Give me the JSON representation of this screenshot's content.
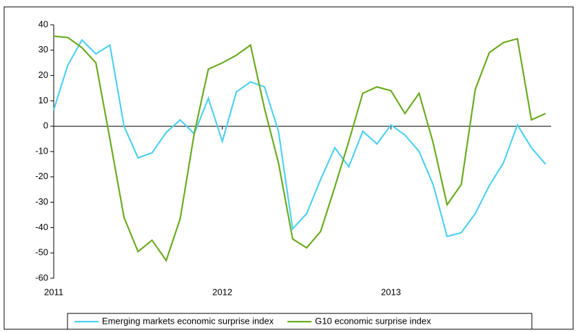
{
  "chart_data": {
    "type": "line",
    "x": [
      2011,
      2011.083,
      2011.167,
      2011.25,
      2011.333,
      2011.417,
      2011.5,
      2011.583,
      2011.667,
      2011.75,
      2011.833,
      2011.917,
      2012,
      2012.083,
      2012.167,
      2012.25,
      2012.333,
      2012.417,
      2012.5,
      2012.583,
      2012.667,
      2012.75,
      2012.833,
      2012.917,
      2013,
      2013.083,
      2013.167,
      2013.25,
      2013.333,
      2013.417,
      2013.5,
      2013.583,
      2013.667,
      2013.75,
      2013.833,
      2013.917
    ],
    "series": [
      {
        "name": "Emerging markets economic surprise index",
        "color": "#4fd0f0",
        "values": [
          6.5,
          24,
          34,
          28.5,
          32,
          0,
          -12.5,
          -10.5,
          -2.5,
          2.5,
          -3,
          11,
          -6,
          13.5,
          17.5,
          15.5,
          -2,
          -40.5,
          -34.5,
          -21,
          -8.5,
          -16,
          -2,
          -7,
          0.5,
          -3.5,
          -10,
          -23,
          -43.5,
          -42,
          -34.5,
          -23.5,
          -14.5,
          0.5,
          -8.5,
          -15
        ]
      },
      {
        "name": "G10 economic surprise index",
        "color": "#6aaa1e",
        "values": [
          35.5,
          35,
          31,
          25,
          -5,
          -36,
          -49.5,
          -45,
          -53,
          -36.5,
          -3,
          22.5,
          25,
          28,
          32,
          7,
          -14.5,
          -44.5,
          -48,
          -41.5,
          -24,
          -6,
          13,
          15.5,
          14,
          5,
          13,
          -6.5,
          -31,
          -23,
          14.5,
          29,
          33,
          34.5,
          2.5,
          5
        ]
      }
    ],
    "xlim": [
      2011,
      2013.95
    ],
    "xticks": [
      2011,
      2012,
      2013
    ],
    "ylim": [
      -60,
      40
    ],
    "yticks": [
      -60,
      -50,
      -40,
      -30,
      -20,
      -10,
      0,
      10,
      20,
      30,
      40
    ],
    "legend": "bottom"
  }
}
